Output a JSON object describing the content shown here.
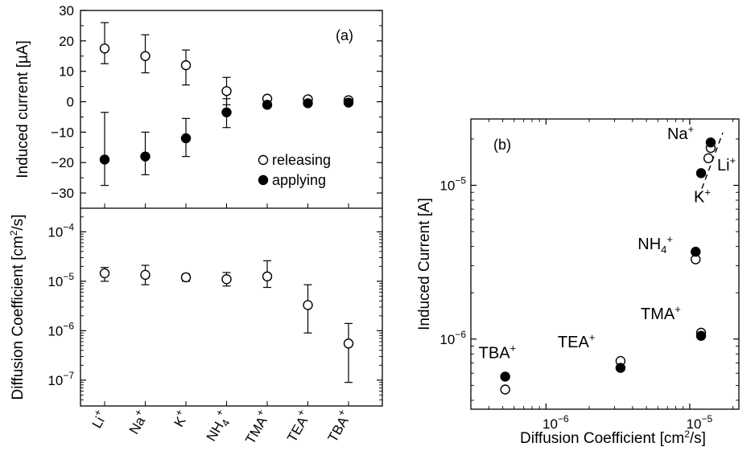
{
  "chart_data": [
    {
      "id": "a-top",
      "type": "scatter",
      "panel_label": "(a)",
      "ylabel": "Induced current [µA]",
      "categories": [
        "Li+",
        "Na+",
        "K+",
        "NH4+",
        "TMA+",
        "TEA+",
        "TBA+"
      ],
      "ylim": [
        -35,
        30
      ],
      "yticks": [
        "30",
        "20",
        "10",
        "0",
        "-10",
        "-20",
        "-30"
      ],
      "legend": {
        "position": "bottom-right",
        "entries": [
          "releasing",
          "applying"
        ]
      },
      "series": [
        {
          "name": "releasing",
          "marker": "open-circle",
          "values": [
            17.5,
            15,
            12,
            3.5,
            1,
            0.8,
            0.5
          ],
          "err_low": [
            12.5,
            9.5,
            5.5,
            -1,
            null,
            null,
            null
          ],
          "err_high": [
            26,
            22,
            17,
            8,
            null,
            null,
            null
          ]
        },
        {
          "name": "applying",
          "marker": "filled-circle",
          "values": [
            -19,
            -18,
            -12,
            -3.5,
            -1,
            -0.5,
            -0.3
          ],
          "err_low": [
            -27.5,
            -24,
            -18,
            -8.5,
            null,
            null,
            null
          ],
          "err_high": [
            -3.5,
            -10,
            -5.5,
            1,
            null,
            null,
            null
          ]
        }
      ]
    },
    {
      "id": "a-bottom",
      "type": "scatter",
      "ylabel": "Diffusion Coefficient [cm²/s]",
      "categories": [
        "Li+",
        "Na+",
        "K+",
        "NH4+",
        "TMA+",
        "TEA+",
        "TBA+"
      ],
      "yscale": "log",
      "ylim": [
        3e-08,
        0.0003
      ],
      "yticks": [
        1e-07,
        1e-06,
        1e-05,
        0.0001
      ],
      "series": [
        {
          "marker": "open-circle",
          "values": [
            1.45e-05,
            1.35e-05,
            1.2e-05,
            1.1e-05,
            1.25e-05,
            3.3e-06,
            5.5e-07
          ],
          "err_low": [
            1e-05,
            8.5e-06,
            1e-05,
            8e-06,
            7.5e-06,
            9e-07,
            9e-08
          ],
          "err_high": [
            1.9e-05,
            2.1e-05,
            1.4e-05,
            1.5e-05,
            2.6e-05,
            8.5e-06,
            1.4e-06
          ]
        }
      ]
    },
    {
      "id": "b",
      "type": "scatter",
      "panel_label": "(b)",
      "xlabel": "Diffusion Coefficient [cm²/s]",
      "ylabel": "Induced Current [A]",
      "xscale": "log",
      "yscale": "log",
      "xlim": [
        3e-07,
        2.2e-05
      ],
      "ylim": [
        3.5e-07,
        2.7e-05
      ],
      "xticks": [
        1e-06,
        1e-05
      ],
      "yticks": [
        1e-06,
        1e-05
      ],
      "fit_line": {
        "style": "dashed",
        "points": [
          [
            1.15e-05,
            8.3e-06
          ],
          [
            1.7e-05,
            2.2e-05
          ]
        ]
      },
      "series": [
        {
          "name": "releasing",
          "marker": "open-circle",
          "x": [
            1.4e-05,
            1.35e-05,
            1.1e-05,
            1.2e-05,
            3.3e-06,
            5.2e-07
          ],
          "y": [
            1.75e-05,
            1.5e-05,
            3.3e-06,
            1.1e-06,
            7.2e-07,
            4.7e-07
          ]
        },
        {
          "name": "applying",
          "marker": "filled-circle",
          "x": [
            1.4e-05,
            1.2e-05,
            1.1e-05,
            1.2e-05,
            3.3e-06,
            5.2e-07
          ],
          "y": [
            1.9e-05,
            1.2e-05,
            3.7e-06,
            1.05e-06,
            6.5e-07,
            5.7e-07
          ]
        }
      ],
      "point_labels": [
        {
          "text": "Na",
          "sup": "+",
          "x": 1.4e-05,
          "y": 1.9e-05
        },
        {
          "text": "Li",
          "sup": "+",
          "x": 1.4e-05,
          "y": 1.75e-05
        },
        {
          "text": "K",
          "sup": "+",
          "x": 1.2e-05,
          "y": 1.2e-05
        },
        {
          "text": "NH4",
          "sup": "+",
          "x": 1.1e-05,
          "y": 3.7e-06
        },
        {
          "text": "TMA",
          "sup": "+",
          "x": 1.2e-05,
          "y": 1.1e-06
        },
        {
          "text": "TEA",
          "sup": "+",
          "x": 3.3e-06,
          "y": 7.2e-07
        },
        {
          "text": "TBA",
          "sup": "+",
          "x": 5.2e-07,
          "y": 5.7e-07
        }
      ]
    }
  ]
}
